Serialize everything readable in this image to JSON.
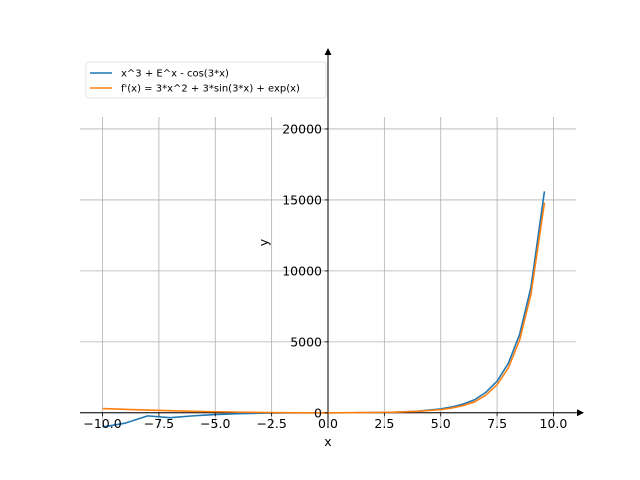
{
  "chart_data": {
    "type": "line",
    "title": "",
    "xlabel": "x",
    "ylabel": "y",
    "xlim": [
      -11,
      11
    ],
    "ylim": [
      -1000,
      25000
    ],
    "x_ticks": [
      -10,
      -7.5,
      -5,
      -2.5,
      0,
      2.5,
      5,
      7.5,
      10
    ],
    "x_tick_labels": [
      "−10.0",
      "−7.5",
      "−5.0",
      "−2.5",
      "0.0",
      "2.5",
      "5.0",
      "7.5",
      "10.0"
    ],
    "y_ticks": [
      0,
      5000,
      10000,
      15000,
      20000
    ],
    "y_tick_labels": [
      "0",
      "5000",
      "10000",
      "15000",
      "20000"
    ],
    "grid": true,
    "legend_position": "top-left",
    "series": [
      {
        "name": "x^3 + E^x - cos(3*x)",
        "color": "#1f77b4",
        "x": [
          -10,
          -9,
          -8,
          -7,
          -6,
          -5,
          -4,
          -3,
          -2,
          -1,
          0,
          1,
          2,
          3,
          4,
          5,
          5.5,
          6,
          6.5,
          7,
          7.5,
          8,
          8.5,
          9,
          9.6
        ],
        "y": [
          -1000,
          -729,
          -216,
          -343,
          -216,
          -125,
          -64,
          -27,
          -8,
          -1,
          0,
          4,
          15,
          48,
          119,
          273,
          411,
          620,
          920,
          1440,
          2230,
          3490,
          5530,
          8830,
          15600
        ]
      },
      {
        "name": "f'(x) = 3*x^2 + 3*sin(3*x) + exp(x)",
        "color": "#ff7f0e",
        "x": [
          -10,
          -9,
          -8,
          -7,
          -6,
          -5,
          -4,
          -3,
          -2,
          -1,
          0,
          1,
          2,
          3,
          4,
          5,
          5.5,
          6,
          6.5,
          7,
          7.5,
          8,
          8.5,
          9,
          9.6
        ],
        "y": [
          300,
          243,
          192,
          147,
          108,
          75,
          48,
          27,
          12,
          3,
          0,
          6,
          19,
          47,
          103,
          224,
          337,
          511,
          774,
          1240,
          1980,
          3170,
          5130,
          8340,
          14800
        ]
      }
    ]
  }
}
